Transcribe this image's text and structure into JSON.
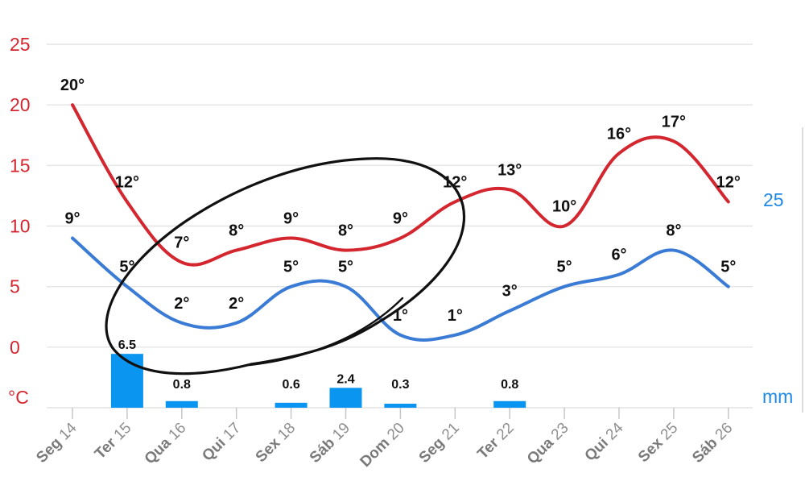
{
  "chart_data": {
    "type": "line",
    "categories": [
      {
        "day": "Seg",
        "date": "14"
      },
      {
        "day": "Ter",
        "date": "15"
      },
      {
        "day": "Qua",
        "date": "16"
      },
      {
        "day": "Qui",
        "date": "17"
      },
      {
        "day": "Sex",
        "date": "18"
      },
      {
        "day": "Sáb",
        "date": "19"
      },
      {
        "day": "Dom",
        "date": "20"
      },
      {
        "day": "Seg",
        "date": "21"
      },
      {
        "day": "Ter",
        "date": "22"
      },
      {
        "day": "Qua",
        "date": "23"
      },
      {
        "day": "Qui",
        "date": "24"
      },
      {
        "day": "Sex",
        "date": "25"
      },
      {
        "day": "Sáb",
        "date": "26"
      }
    ],
    "series": [
      {
        "values": [
          20,
          12,
          7,
          8,
          9,
          8,
          9,
          12,
          13,
          10,
          16,
          17,
          12
        ],
        "labels": [
          "20°",
          "12°",
          "7°",
          "8°",
          "9°",
          "8°",
          "9°",
          "12°",
          "13°",
          "10°",
          "16°",
          "17°",
          "12°"
        ],
        "color": "#d3262f"
      },
      {
        "values": [
          9,
          5,
          2,
          2,
          5,
          5,
          1,
          1,
          3,
          5,
          6,
          8,
          5
        ],
        "labels": [
          "9°",
          "5°",
          "2°",
          "2°",
          "5°",
          "5°",
          "1°",
          "1°",
          "3°",
          "5°",
          "6°",
          "8°",
          "5°"
        ],
        "color": "#3a7bd5"
      }
    ],
    "precipitation": {
      "values": [
        0,
        6.5,
        0.8,
        0,
        0.6,
        2.4,
        0.3,
        0,
        0.8,
        0,
        0,
        0,
        0
      ],
      "labels": [
        "",
        "6.5",
        "0.8",
        "",
        "0.6",
        "2.4",
        "0.3",
        "",
        "0.8",
        "",
        "",
        "",
        ""
      ],
      "color": "#0a96f0",
      "y2lim": [
        0,
        25
      ]
    },
    "y_left": {
      "ticks": [
        "25",
        "20",
        "15",
        "10",
        "5",
        "0"
      ],
      "unit": "°C",
      "ylim": [
        -5,
        25
      ],
      "color": "#d3262f"
    },
    "y_right": {
      "ticks": [
        "25"
      ],
      "unit": "mm",
      "color": "#1e88e5"
    },
    "grid": true,
    "annotation": {
      "type": "hand-drawn-ellipse",
      "color": "#111111"
    }
  }
}
